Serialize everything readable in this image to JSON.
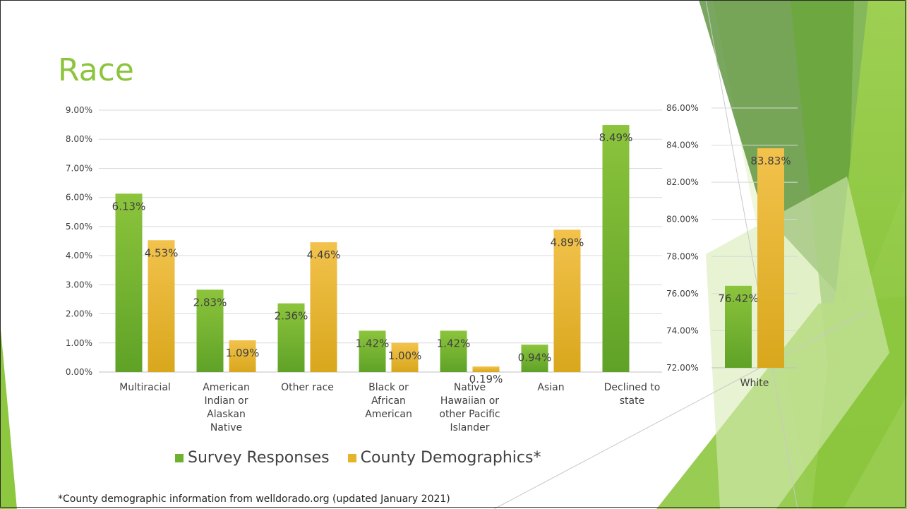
{
  "title": "Race",
  "footnote": "*County demographic information from welldorado.org (updated January 2021)",
  "colors": {
    "title": "#8cc43c",
    "survey_top": "#8cc43c",
    "survey_bottom": "#5fa227",
    "county_top": "#f2c24c",
    "county_bottom": "#d9a71c",
    "decor_green": "#8dc63f",
    "decor_dark": "#4e8a2a"
  },
  "legend": [
    {
      "label": "Survey Responses",
      "color": "#6fb02e"
    },
    {
      "label": "County Demographics*",
      "color": "#e6b429"
    }
  ],
  "chart_data": [
    {
      "type": "bar",
      "categories": [
        [
          "Multiracial"
        ],
        [
          "American",
          "Indian or",
          "Alaskan",
          "Native"
        ],
        [
          "Other race"
        ],
        [
          "Black or",
          "African",
          "American"
        ],
        [
          "Native",
          "Hawaiian or",
          "other Pacific",
          "Islander"
        ],
        [
          "Asian"
        ],
        [
          "Declined to",
          "state"
        ]
      ],
      "series": [
        {
          "name": "Survey Responses",
          "values": [
            6.13,
            2.83,
            2.36,
            1.42,
            1.42,
            0.94,
            8.49
          ],
          "labels": [
            "6.13%",
            "2.83%",
            "2.36%",
            "1.42%",
            "1.42%",
            "0.94%",
            "8.49%"
          ]
        },
        {
          "name": "County Demographics*",
          "values": [
            4.53,
            1.09,
            4.46,
            1.0,
            0.19,
            4.89,
            null
          ],
          "labels": [
            "4.53%",
            "1.09%",
            "4.46%",
            "1.00%",
            "0.19%",
            "4.89%",
            ""
          ]
        }
      ],
      "ylim": [
        0,
        9
      ],
      "yticks": [
        "0.00%",
        "1.00%",
        "2.00%",
        "3.00%",
        "4.00%",
        "5.00%",
        "6.00%",
        "7.00%",
        "8.00%",
        "9.00%"
      ],
      "grid": true
    },
    {
      "type": "bar",
      "categories": [
        [
          "White"
        ]
      ],
      "series": [
        {
          "name": "Survey Responses",
          "values": [
            76.42
          ],
          "labels": [
            "76.42%"
          ]
        },
        {
          "name": "County Demographics*",
          "values": [
            83.83
          ],
          "labels": [
            "83.83%"
          ]
        }
      ],
      "ylim": [
        72,
        86
      ],
      "yticks": [
        "72.00%",
        "74.00%",
        "76.00%",
        "78.00%",
        "80.00%",
        "82.00%",
        "84.00%",
        "86.00%"
      ],
      "grid": true
    }
  ]
}
